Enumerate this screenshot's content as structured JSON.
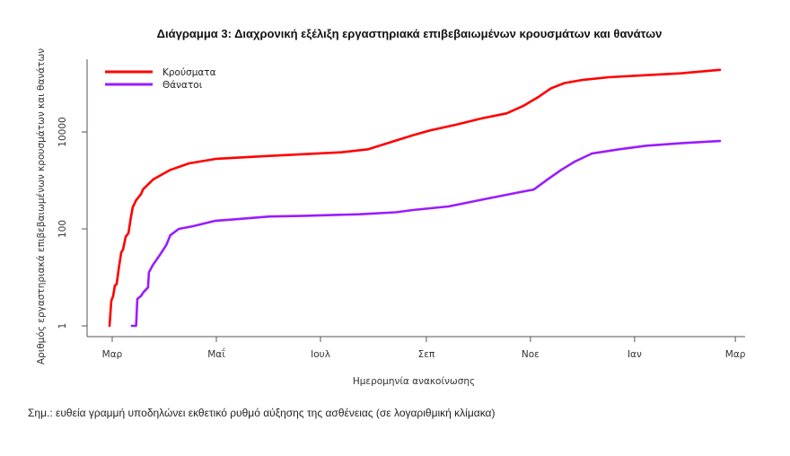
{
  "chart_data": {
    "type": "line",
    "title": "Διάγραμμα 3: Διαχρονική εξέλιξη εργαστηριακά επιβεβαιωμένων κρουσμάτων και θανάτων",
    "xlabel": "Ημερομηνία ανακοίνωσης",
    "ylabel": "Αριθμός εργαστηριακά επιβεβαιωμένων κρουσμάτων και θανάτων",
    "yscale": "log",
    "ylim": [
      0.6,
      500000
    ],
    "y_ticks": [
      {
        "value": 1,
        "label": "1"
      },
      {
        "value": 100,
        "label": "100"
      },
      {
        "value": 10000,
        "label": "10000"
      }
    ],
    "x_unit": "days since first Μαρ tick",
    "xlim": [
      -5,
      388
    ],
    "x_ticks": [
      {
        "value": 0,
        "label": "Μαρ"
      },
      {
        "value": 61,
        "label": "Μαΐ"
      },
      {
        "value": 122,
        "label": "Ιουλ"
      },
      {
        "value": 184,
        "label": "Σεπ"
      },
      {
        "value": 245,
        "label": "Νοε"
      },
      {
        "value": 306,
        "label": "Ιαν"
      },
      {
        "value": 365,
        "label": "Μαρ"
      }
    ],
    "legend_position": "top-left",
    "series": [
      {
        "name": "Κρούσματα",
        "color": "#ff0000",
        "points": [
          [
            -1.6,
            1
          ],
          [
            -0.5,
            3.3
          ],
          [
            0.5,
            4.1
          ],
          [
            1.6,
            6.8
          ],
          [
            2.6,
            7.2
          ],
          [
            3.7,
            14
          ],
          [
            5.3,
            33
          ],
          [
            6.3,
            37
          ],
          [
            7.9,
            69
          ],
          [
            9.5,
            82
          ],
          [
            11,
            177
          ],
          [
            12,
            277
          ],
          [
            14,
            390
          ],
          [
            17,
            530
          ],
          [
            18,
            650
          ],
          [
            24,
            1050
          ],
          [
            34,
            1650
          ],
          [
            45,
            2250
          ],
          [
            61,
            2800
          ],
          [
            92,
            3200
          ],
          [
            134,
            3800
          ],
          [
            150,
            4400
          ],
          [
            160,
            5700
          ],
          [
            176,
            8500
          ],
          [
            186,
            10700
          ],
          [
            202,
            14300
          ],
          [
            217,
            19300
          ],
          [
            231,
            24200
          ],
          [
            241,
            34800
          ],
          [
            250,
            53600
          ],
          [
            257,
            79600
          ],
          [
            265,
            102000
          ],
          [
            276,
            119000
          ],
          [
            291,
            135000
          ],
          [
            312,
            148000
          ],
          [
            333,
            162000
          ],
          [
            356,
            191000
          ]
        ]
      },
      {
        "name": "Θάνατοι",
        "color": "#9a1cff",
        "points": [
          [
            11.5,
            1
          ],
          [
            14,
            1
          ],
          [
            14.7,
            3.6
          ],
          [
            16.8,
            4.1
          ],
          [
            18.4,
            5
          ],
          [
            21,
            6.2
          ],
          [
            21.5,
            12.7
          ],
          [
            23.7,
            17.8
          ],
          [
            27.9,
            29
          ],
          [
            31.6,
            46
          ],
          [
            34,
            74
          ],
          [
            39,
            100
          ],
          [
            47,
            113
          ],
          [
            60,
            146
          ],
          [
            92,
            180
          ],
          [
            113,
            186
          ],
          [
            145,
            200
          ],
          [
            166,
            220
          ],
          [
            176,
            245
          ],
          [
            197,
            290
          ],
          [
            218,
            410
          ],
          [
            239,
            575
          ],
          [
            247,
            650
          ],
          [
            255,
            1050
          ],
          [
            263,
            1650
          ],
          [
            271,
            2450
          ],
          [
            281,
            3600
          ],
          [
            297,
            4400
          ],
          [
            313,
            5200
          ],
          [
            334,
            5900
          ],
          [
            356,
            6500
          ]
        ]
      }
    ]
  },
  "note": "Σημ.: ευθεία γραμμή υποδηλώνει εκθετικό ρυθμό αύξησης της ασθένειας (σε λογαριθμική κλίμακα)"
}
